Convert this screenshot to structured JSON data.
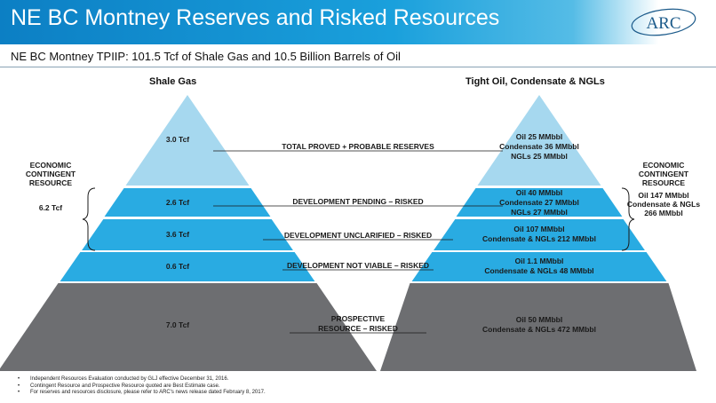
{
  "header": {
    "title": "NE BC Montney Reserves and Risked Resources",
    "logo_text": "ARC"
  },
  "subtitle": "NE BC Montney TPIIP: 101.5 Tcf of Shale Gas and 10.5 Billion Barrels of Oil",
  "left_title": "Shale Gas",
  "right_title": "Tight Oil, Condensate & NGLs",
  "categories": {
    "reserves": "TOTAL PROVED + PROBABLE RESERVES",
    "pending": "DEVELOPMENT PENDING – RISKED",
    "unclarified": "DEVELOPMENT UNCLARIFIED – RISKED",
    "not_viable": "DEVELOPMENT NOT VIABLE – RISKED",
    "prospective_1": "PROSPECTIVE",
    "prospective_2": "RESOURCE – RISKED"
  },
  "gas": {
    "reserves": "3.0 Tcf",
    "pending": "2.6 Tcf",
    "unclarified": "3.6 Tcf",
    "not_viable": "0.6 Tcf",
    "prospective": "7.0 Tcf"
  },
  "liquids": {
    "reserves": [
      "Oil 25 MMbbl",
      "Condensate 36 MMbbl",
      "NGLs 25 MMbbl"
    ],
    "pending": [
      "Oil 40 MMbbl",
      "Condensate 27 MMbbl",
      "NGLs 27 MMbbl"
    ],
    "unclarified": [
      "Oil 107 MMbbl",
      "Condensate & NGLs 212 MMbbl"
    ],
    "not_viable": [
      "Oil 1.1 MMbbl",
      "Condensate & NGLs 48 MMbbl"
    ],
    "prospective": [
      "Oil 50 MMbbl",
      "Condensate & NGLs 472 MMbbl"
    ]
  },
  "left_contingent": {
    "label_1": "ECONOMIC",
    "label_2": "CONTINGENT",
    "label_3": "RESOURCE",
    "value": "6.2 Tcf"
  },
  "right_contingent": {
    "label_1": "ECONOMIC",
    "label_2": "CONTINGENT",
    "label_3": "RESOURCE",
    "value_1": "Oil 147 MMbbl",
    "value_2": "Condensate & NGLs",
    "value_3": "266 MMbbl"
  },
  "footnotes": [
    "Independent Resources Evaluation conducted by GLJ effective December 31, 2016.",
    "Contingent Resource and Prospective Resource quoted are Best Estimate case.",
    "For reserves and resources disclosure, please refer to ARC's news release dated February 8, 2017."
  ],
  "colors": {
    "light_blue": "#a6d8ef",
    "mid_blue": "#29abe2",
    "grey": "#6d6e71"
  }
}
